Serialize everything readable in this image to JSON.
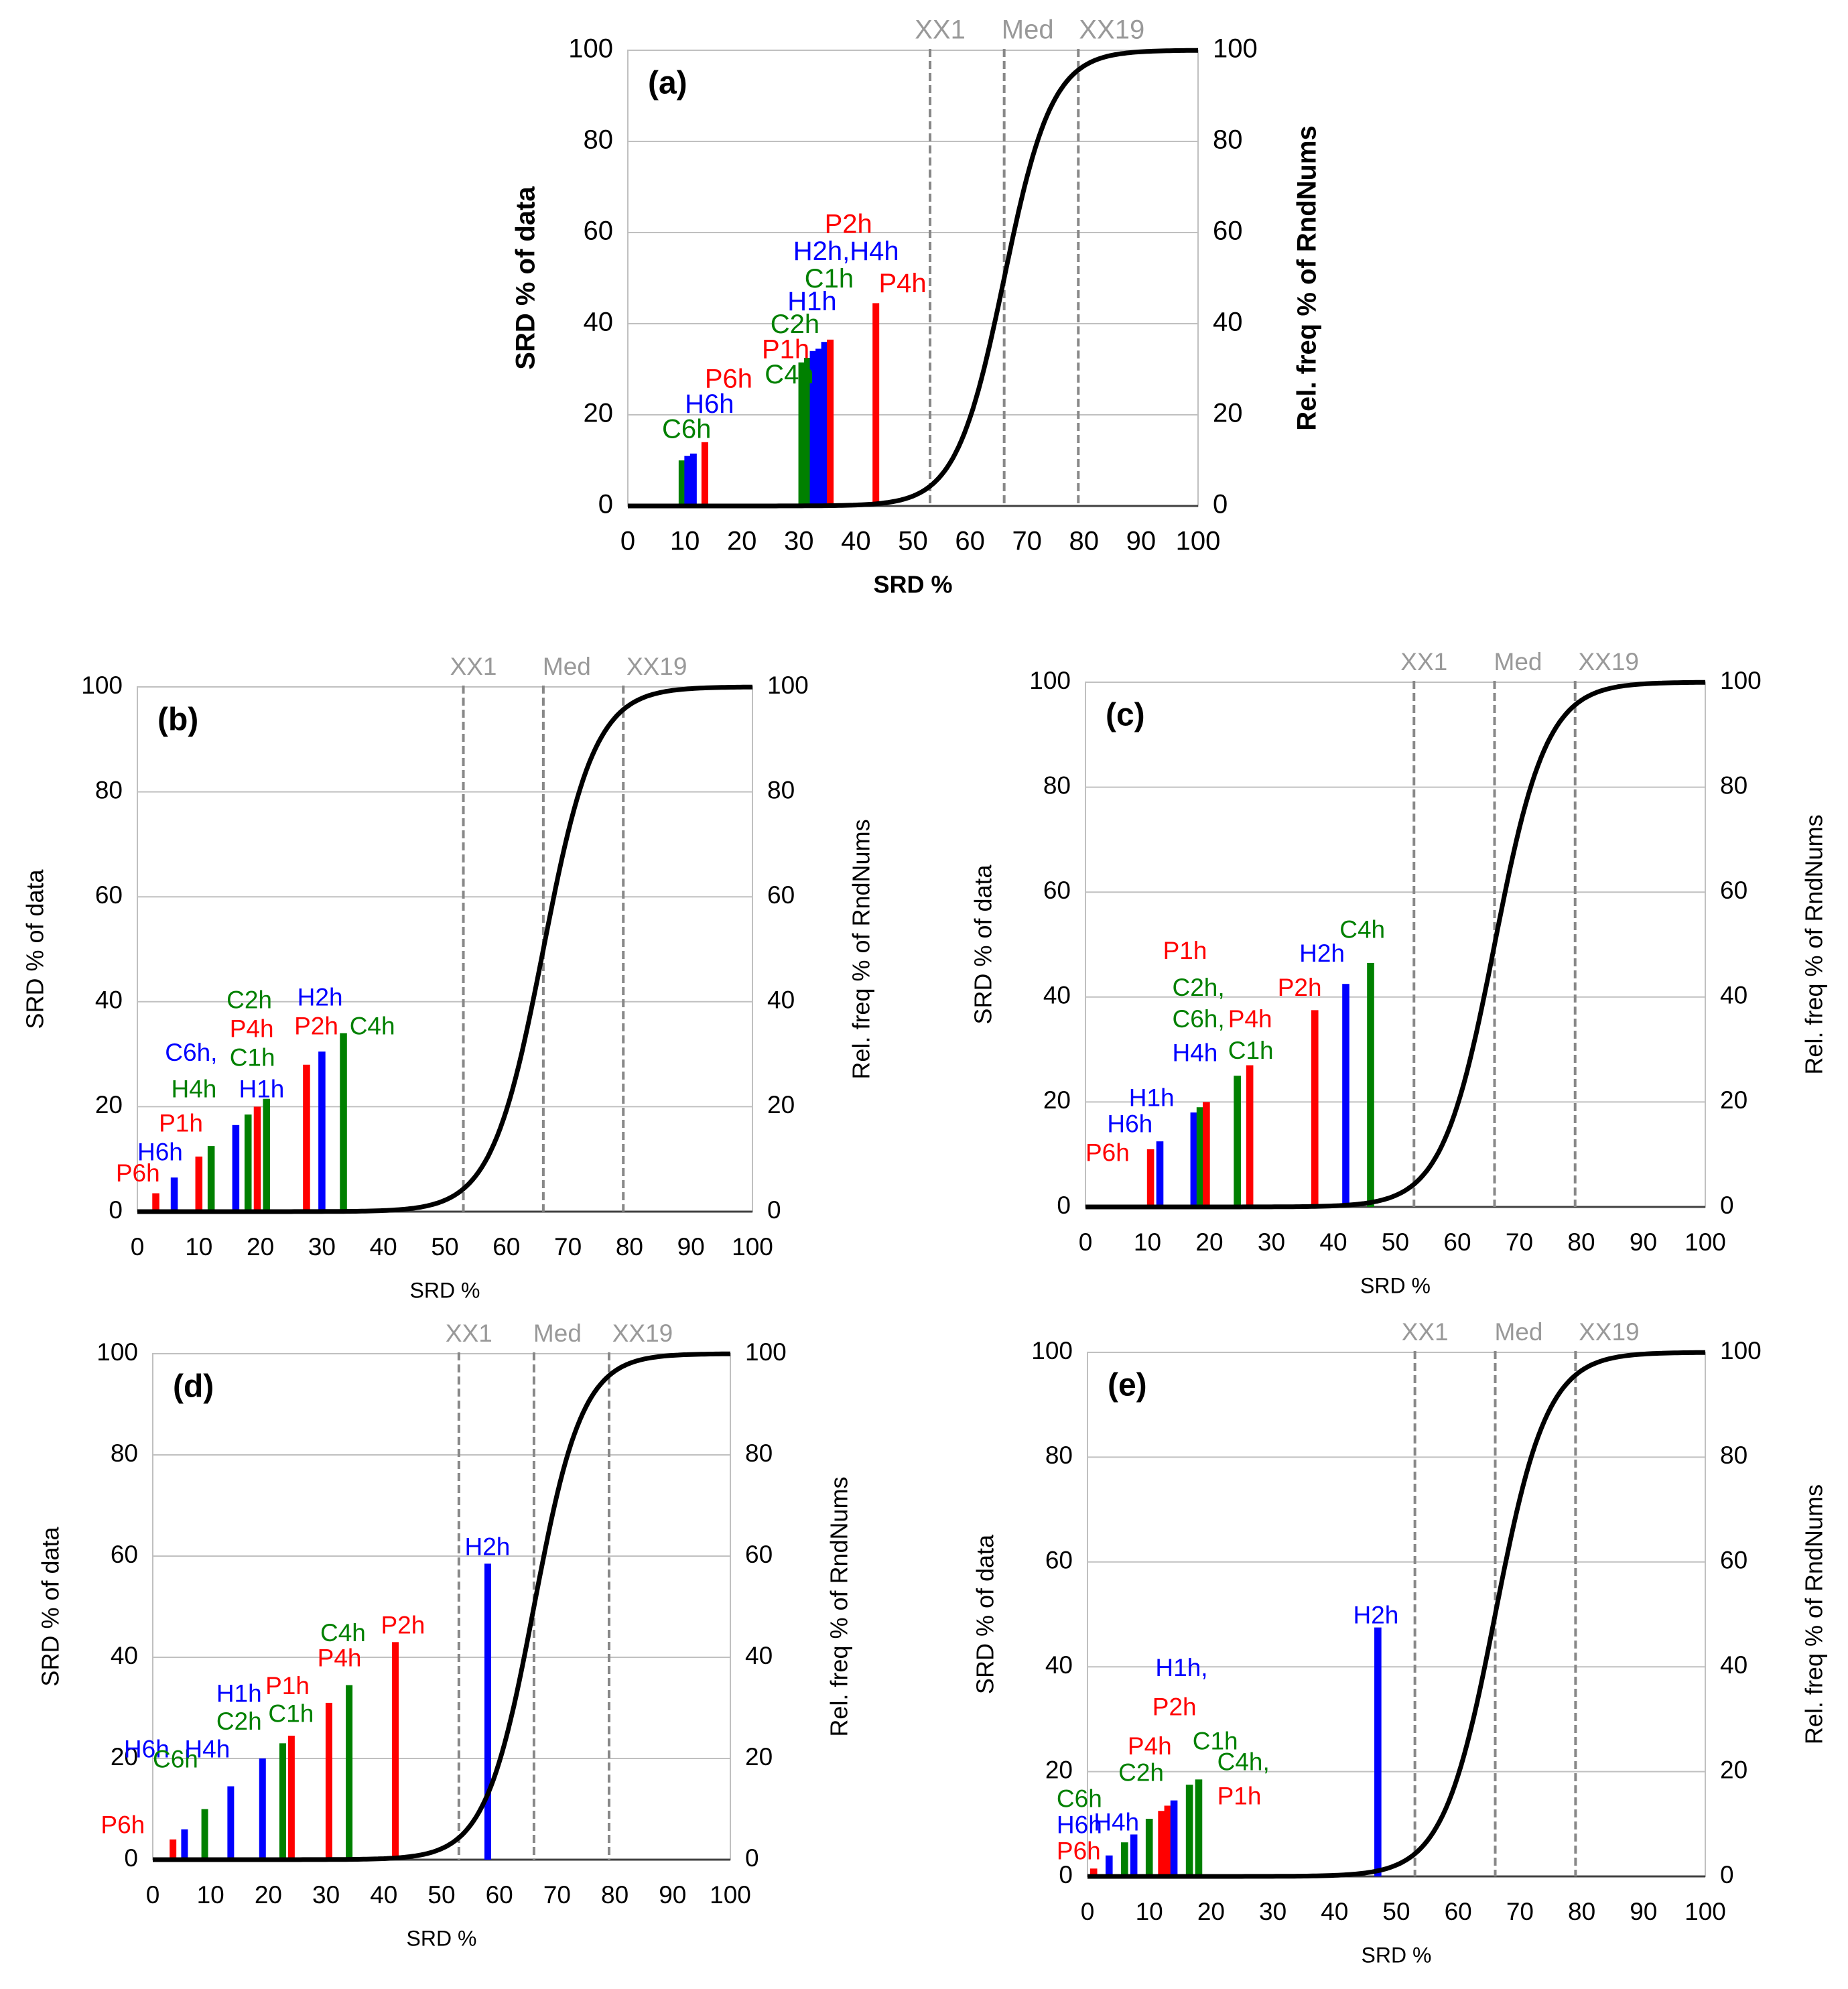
{
  "colors": {
    "P": "#ff0000",
    "H": "#0000ff",
    "C": "#008000",
    "curve": "#000000",
    "ref": "#a0a0a0",
    "grid": "#c0c0c0",
    "text": "#000000"
  },
  "chart_data": [
    {
      "id": "a",
      "panel_label": "(a)",
      "type": "bar",
      "xlabel": "SRD %",
      "ylabel": "SRD % of data",
      "y2label": "Rel. freq % of RndNums",
      "xlim": [
        0,
        100
      ],
      "ylim": [
        0,
        100
      ],
      "y2lim": [
        0,
        100
      ],
      "xticks": [
        "0",
        "10",
        "20",
        "30",
        "40",
        "50",
        "60",
        "70",
        "80",
        "90",
        "100"
      ],
      "yticks": [
        "0",
        "20",
        "40",
        "60",
        "80",
        "100"
      ],
      "y2ticks": [
        "0",
        "20",
        "40",
        "60",
        "80",
        "100"
      ],
      "reference_lines": [
        {
          "x": 53,
          "label": "XX1"
        },
        {
          "x": 66,
          "label": "Med"
        },
        {
          "x": 79,
          "label": "XX19"
        }
      ],
      "bars": [
        {
          "x": 9.5,
          "y": 10,
          "series": "C"
        },
        {
          "x": 10.5,
          "y": 11,
          "series": "H"
        },
        {
          "x": 11.5,
          "y": 11.5,
          "series": "H"
        },
        {
          "x": 13.5,
          "y": 14,
          "series": "P"
        },
        {
          "x": 30.5,
          "y": 31.5,
          "series": "C"
        },
        {
          "x": 31.5,
          "y": 32.5,
          "series": "C"
        },
        {
          "x": 32.5,
          "y": 34,
          "series": "H"
        },
        {
          "x": 33.5,
          "y": 34.5,
          "series": "H"
        },
        {
          "x": 34.5,
          "y": 36,
          "series": "H"
        },
        {
          "x": 35.5,
          "y": 36.5,
          "series": "P"
        },
        {
          "x": 43.5,
          "y": 44.5,
          "series": "P"
        }
      ],
      "labels": [
        {
          "text": "C6h",
          "series": "C",
          "x": 6,
          "y": 16.5
        },
        {
          "text": "H6h",
          "series": "H",
          "x": 10,
          "y": 22
        },
        {
          "text": "P6h",
          "series": "P",
          "x": 13.5,
          "y": 27.5
        },
        {
          "text": "C4h",
          "series": "C",
          "x": 24,
          "y": 28.5
        },
        {
          "text": "P1h",
          "series": "P",
          "x": 23.5,
          "y": 34
        },
        {
          "text": "C2h",
          "series": "C",
          "x": 25,
          "y": 39.5
        },
        {
          "text": "H1h",
          "series": "H",
          "x": 28,
          "y": 44.5
        },
        {
          "text": "C1h",
          "series": "C",
          "x": 31,
          "y": 49.5
        },
        {
          "text": "H2h,H4h",
          "series": "H",
          "x": 29,
          "y": 55.5
        },
        {
          "text": "P2h",
          "series": "P",
          "x": 34.5,
          "y": 61.5
        },
        {
          "text": "P4h",
          "series": "P",
          "x": 44,
          "y": 48.5
        }
      ],
      "curve": "cumulative relative frequency of random numbers (sigmoid, 0 to 100, median at 66)"
    },
    {
      "id": "b",
      "panel_label": "(b)",
      "type": "bar",
      "xlabel": "SRD %",
      "ylabel": "SRD % of data",
      "y2label": "Rel. freq % of RndNums",
      "xlim": [
        0,
        100
      ],
      "ylim": [
        0,
        100
      ],
      "y2lim": [
        0,
        100
      ],
      "xticks": [
        "0",
        "10",
        "20",
        "30",
        "40",
        "50",
        "60",
        "70",
        "80",
        "90",
        "100"
      ],
      "yticks": [
        "0",
        "20",
        "40",
        "60",
        "80",
        "100"
      ],
      "y2ticks": [
        "0",
        "20",
        "40",
        "60",
        "80",
        "100"
      ],
      "reference_lines": [
        {
          "x": 53,
          "label": "XX1"
        },
        {
          "x": 66,
          "label": "Med"
        },
        {
          "x": 79,
          "label": "XX19"
        }
      ],
      "bars": [
        {
          "x": 3,
          "y": 3.5,
          "series": "P"
        },
        {
          "x": 6,
          "y": 6.5,
          "series": "H"
        },
        {
          "x": 10,
          "y": 10.5,
          "series": "P"
        },
        {
          "x": 12,
          "y": 12.5,
          "series": "C"
        },
        {
          "x": 16,
          "y": 16.5,
          "series": "H"
        },
        {
          "x": 18,
          "y": 18.5,
          "series": "C"
        },
        {
          "x": 19.5,
          "y": 20,
          "series": "P"
        },
        {
          "x": 21,
          "y": 21.5,
          "series": "C"
        },
        {
          "x": 27.5,
          "y": 28,
          "series": "P"
        },
        {
          "x": 30,
          "y": 30.5,
          "series": "H"
        },
        {
          "x": 33.5,
          "y": 34,
          "series": "C"
        }
      ],
      "labels": [
        {
          "text": "P6h",
          "series": "P",
          "x": -3.5,
          "y": 7
        },
        {
          "text": "H6h",
          "series": "H",
          "x": 0,
          "y": 11
        },
        {
          "text": "P1h",
          "series": "P",
          "x": 3.5,
          "y": 16.5
        },
        {
          "text": "H4h",
          "series": "C",
          "x": 5.5,
          "y": 23
        },
        {
          "text": "H1h",
          "series": "H",
          "x": 16.5,
          "y": 23
        },
        {
          "text": "C6h,",
          "series": "H",
          "x": 4.5,
          "y": 30
        },
        {
          "text": "C1h",
          "series": "C",
          "x": 15,
          "y": 29
        },
        {
          "text": "P4h",
          "series": "P",
          "x": 15,
          "y": 34.5
        },
        {
          "text": "C2h",
          "series": "C",
          "x": 14.5,
          "y": 40
        },
        {
          "text": "P2h",
          "series": "P",
          "x": 25.5,
          "y": 35
        },
        {
          "text": "H2h",
          "series": "H",
          "x": 26,
          "y": 40.5
        },
        {
          "text": "C4h",
          "series": "C",
          "x": 34.5,
          "y": 35
        }
      ],
      "curve": "cumulative relative frequency of random numbers (sigmoid, 0 to 100, median at 66)"
    },
    {
      "id": "c",
      "panel_label": "(c)",
      "type": "bar",
      "xlabel": "SRD %",
      "ylabel": "SRD % of data",
      "y2label": "Rel. freq % of RndNums",
      "xlim": [
        0,
        100
      ],
      "ylim": [
        0,
        100
      ],
      "y2lim": [
        0,
        100
      ],
      "xticks": [
        "0",
        "10",
        "20",
        "30",
        "40",
        "50",
        "60",
        "70",
        "80",
        "90",
        "100"
      ],
      "yticks": [
        "0",
        "20",
        "40",
        "60",
        "80",
        "100"
      ],
      "y2ticks": [
        "0",
        "20",
        "40",
        "60",
        "80",
        "100"
      ],
      "reference_lines": [
        {
          "x": 53,
          "label": "XX1"
        },
        {
          "x": 66,
          "label": "Med"
        },
        {
          "x": 79,
          "label": "XX19"
        }
      ],
      "bars": [
        {
          "x": 10.5,
          "y": 11,
          "series": "P"
        },
        {
          "x": 12,
          "y": 12.5,
          "series": "H"
        },
        {
          "x": 17.5,
          "y": 18,
          "series": "H"
        },
        {
          "x": 18.5,
          "y": 19,
          "series": "C"
        },
        {
          "x": 19.5,
          "y": 20,
          "series": "P"
        },
        {
          "x": 24.5,
          "y": 25,
          "series": "C"
        },
        {
          "x": 26.5,
          "y": 27,
          "series": "P"
        },
        {
          "x": 37,
          "y": 37.5,
          "series": "P"
        },
        {
          "x": 42,
          "y": 42.5,
          "series": "H"
        },
        {
          "x": 46,
          "y": 46.5,
          "series": "C"
        }
      ],
      "labels": [
        {
          "text": "P6h",
          "series": "P",
          "x": 0,
          "y": 10
        },
        {
          "text": "H6h",
          "series": "H",
          "x": 3.5,
          "y": 15.5
        },
        {
          "text": "H1h",
          "series": "H",
          "x": 7,
          "y": 20.5
        },
        {
          "text": "H4h",
          "series": "H",
          "x": 14,
          "y": 29
        },
        {
          "text": "C1h",
          "series": "C",
          "x": 23,
          "y": 29.5
        },
        {
          "text": "C6h,",
          "series": "C",
          "x": 14,
          "y": 35.5
        },
        {
          "text": "P4h",
          "series": "P",
          "x": 23,
          "y": 35.5
        },
        {
          "text": "C2h,",
          "series": "C",
          "x": 14,
          "y": 41.5
        },
        {
          "text": "P1h",
          "series": "P",
          "x": 12.5,
          "y": 48.5
        },
        {
          "text": "P2h",
          "series": "P",
          "x": 31,
          "y": 41.5
        },
        {
          "text": "H2h",
          "series": "H",
          "x": 34.5,
          "y": 48
        },
        {
          "text": "C4h",
          "series": "C",
          "x": 41,
          "y": 52.5
        }
      ],
      "curve": "cumulative relative frequency of random numbers (sigmoid, 0 to 100, median at 66)"
    },
    {
      "id": "d",
      "panel_label": "(d)",
      "type": "bar",
      "xlabel": "SRD %",
      "ylabel": "SRD % of data",
      "y2label": "Rel. freq % of RndNums",
      "xlim": [
        0,
        100
      ],
      "ylim": [
        0,
        100
      ],
      "y2lim": [
        0,
        100
      ],
      "xticks": [
        "0",
        "10",
        "20",
        "30",
        "40",
        "50",
        "60",
        "70",
        "80",
        "90",
        "100"
      ],
      "yticks": [
        "0",
        "20",
        "40",
        "60",
        "80",
        "100"
      ],
      "y2ticks": [
        "0",
        "20",
        "40",
        "60",
        "80",
        "100"
      ],
      "reference_lines": [
        {
          "x": 53,
          "label": "XX1"
        },
        {
          "x": 66,
          "label": "Med"
        },
        {
          "x": 79,
          "label": "XX19"
        }
      ],
      "bars": [
        {
          "x": 3.5,
          "y": 4,
          "series": "P"
        },
        {
          "x": 5.5,
          "y": 6,
          "series": "H"
        },
        {
          "x": 9,
          "y": 10,
          "series": "C"
        },
        {
          "x": 13.5,
          "y": 14.5,
          "series": "H"
        },
        {
          "x": 19,
          "y": 20,
          "series": "H"
        },
        {
          "x": 22.5,
          "y": 23,
          "series": "C"
        },
        {
          "x": 24,
          "y": 24.5,
          "series": "P"
        },
        {
          "x": 30.5,
          "y": 31,
          "series": "P"
        },
        {
          "x": 34,
          "y": 34.5,
          "series": "C"
        },
        {
          "x": 42,
          "y": 43,
          "series": "P"
        },
        {
          "x": 58,
          "y": 58.5,
          "series": "H"
        }
      ],
      "labels": [
        {
          "text": "P6h",
          "series": "P",
          "x": -9,
          "y": 6.5
        },
        {
          "text": "H6h",
          "series": "H",
          "x": -5,
          "y": 21.5
        },
        {
          "text": "C6h",
          "series": "C",
          "x": 0,
          "y": 19.5
        },
        {
          "text": "H4h",
          "series": "H",
          "x": 5.5,
          "y": 21.5
        },
        {
          "text": "C2h",
          "series": "C",
          "x": 11,
          "y": 27
        },
        {
          "text": "H1h",
          "series": "H",
          "x": 11,
          "y": 32.5
        },
        {
          "text": "C1h",
          "series": "C",
          "x": 20,
          "y": 28.5
        },
        {
          "text": "P1h",
          "series": "P",
          "x": 19.5,
          "y": 34
        },
        {
          "text": "P4h",
          "series": "P",
          "x": 28.5,
          "y": 39.5
        },
        {
          "text": "C4h",
          "series": "C",
          "x": 29,
          "y": 44.5
        },
        {
          "text": "P2h",
          "series": "P",
          "x": 39.5,
          "y": 46
        },
        {
          "text": "H2h",
          "series": "H",
          "x": 54,
          "y": 61.5
        }
      ],
      "curve": "cumulative relative frequency of random numbers (sigmoid, 0 to 100, median at 66)"
    },
    {
      "id": "e",
      "panel_label": "(e)",
      "type": "bar",
      "xlabel": "SRD %",
      "ylabel": "SRD % of data",
      "y2label": "Rel. freq % of RndNums",
      "xlim": [
        0,
        100
      ],
      "ylim": [
        0,
        100
      ],
      "y2lim": [
        0,
        100
      ],
      "xticks": [
        "0",
        "10",
        "20",
        "30",
        "40",
        "50",
        "60",
        "70",
        "80",
        "90",
        "100"
      ],
      "yticks": [
        "0",
        "20",
        "40",
        "60",
        "80",
        "100"
      ],
      "y2ticks": [
        "0",
        "20",
        "40",
        "60",
        "80",
        "100"
      ],
      "reference_lines": [
        {
          "x": 53,
          "label": "XX1"
        },
        {
          "x": 66,
          "label": "Med"
        },
        {
          "x": 79,
          "label": "XX19"
        }
      ],
      "bars": [
        {
          "x": 1,
          "y": 1.5,
          "series": "P"
        },
        {
          "x": 3.5,
          "y": 4,
          "series": "H"
        },
        {
          "x": 6,
          "y": 6.5,
          "series": "C"
        },
        {
          "x": 7.5,
          "y": 8,
          "series": "H"
        },
        {
          "x": 10,
          "y": 11,
          "series": "C"
        },
        {
          "x": 12,
          "y": 12.5,
          "series": "P"
        },
        {
          "x": 13,
          "y": 13.5,
          "series": "P"
        },
        {
          "x": 14,
          "y": 14.5,
          "series": "H"
        },
        {
          "x": 16.5,
          "y": 17.5,
          "series": "C"
        },
        {
          "x": 18,
          "y": 18.5,
          "series": "C"
        },
        {
          "x": 47,
          "y": 47.5,
          "series": "H"
        }
      ],
      "labels": [
        {
          "text": "P6h",
          "series": "P",
          "x": -5,
          "y": 4.5
        },
        {
          "text": "H6h",
          "series": "H",
          "x": -5,
          "y": 9.5
        },
        {
          "text": "C6h",
          "series": "C",
          "x": -5,
          "y": 14.5
        },
        {
          "text": "H4h",
          "series": "H",
          "x": 1,
          "y": 10
        },
        {
          "text": "C2h",
          "series": "C",
          "x": 5,
          "y": 19.5
        },
        {
          "text": "P4h",
          "series": "P",
          "x": 6.5,
          "y": 24.5
        },
        {
          "text": "C1h",
          "series": "C",
          "x": 17,
          "y": 25.5
        },
        {
          "text": "C4h,",
          "series": "C",
          "x": 21,
          "y": 21.5
        },
        {
          "text": "P1h",
          "series": "P",
          "x": 21,
          "y": 15
        },
        {
          "text": "P2h",
          "series": "P",
          "x": 10.5,
          "y": 32
        },
        {
          "text": "H1h,",
          "series": "H",
          "x": 11,
          "y": 39.5
        },
        {
          "text": "H2h",
          "series": "H",
          "x": 43,
          "y": 49.5
        }
      ],
      "curve": "cumulative relative frequency of random numbers (sigmoid, 0 to 100, median at 66)"
    }
  ]
}
